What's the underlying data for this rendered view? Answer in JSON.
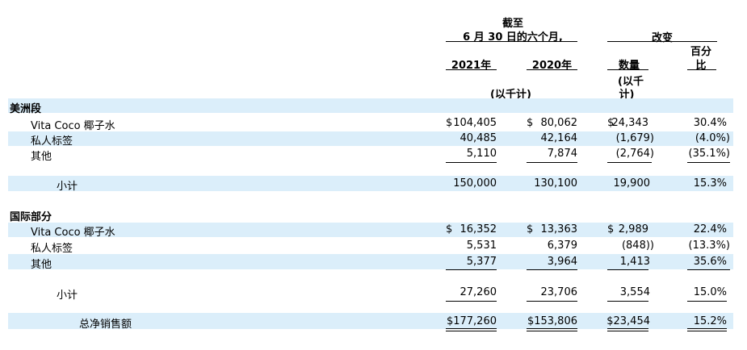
{
  "header": {
    "period_line1": "截至",
    "period_line2": "6 月 30 日的六个月,",
    "change_title": "改变",
    "year_2021": "2021年",
    "year_2020": "2020年",
    "amount_label": "数量",
    "percent_label_line1": "百分",
    "percent_label_line2": "比",
    "thousands_note": "(以千计)",
    "thousands_note_change_line1": "(以千",
    "thousands_note_change_line2": "计)"
  },
  "americas": {
    "section_title": "美洲段",
    "rows": [
      {
        "label": "Vita Coco 椰子水",
        "v2021": "$104,405",
        "v2020": "$  80,062",
        "change": "$24,343",
        "pct": "30.4%"
      },
      {
        "label": "私人标签",
        "v2021": "40,485",
        "v2020": "42,164",
        "change": "(1,679)",
        "pct": "(4.0%)"
      },
      {
        "label": "其他",
        "v2021": "5,110",
        "v2020": "7,874",
        "change": "(2,764)",
        "pct": "(35.1%)"
      }
    ],
    "subtotal": {
      "label": "小计",
      "v2021": "150,000",
      "v2020": "130,100",
      "change": "19,900",
      "pct": "15.3%"
    }
  },
  "international": {
    "section_title": "国际部分",
    "rows": [
      {
        "label": "Vita Coco 椰子水",
        "v2021": "$  16,352",
        "v2020": "$  13,363",
        "change": "$  2,989",
        "pct": "22.4%"
      },
      {
        "label": "私人标签",
        "v2021": "5,531",
        "v2020": "6,379",
        "change": "(848))",
        "pct": "(13.3%)"
      },
      {
        "label": "其他",
        "v2021": "5,377",
        "v2020": "3,964",
        "change": "1,413",
        "pct": "35.6%"
      }
    ],
    "subtotal": {
      "label": "小计",
      "v2021": "27,260",
      "v2020": "23,706",
      "change": "3,554",
      "pct": "15.0%"
    }
  },
  "total": {
    "label": "总净销售额",
    "v2021": "$177,260",
    "v2020": "$153,806",
    "change": "$23,454",
    "pct": "15.2%"
  }
}
